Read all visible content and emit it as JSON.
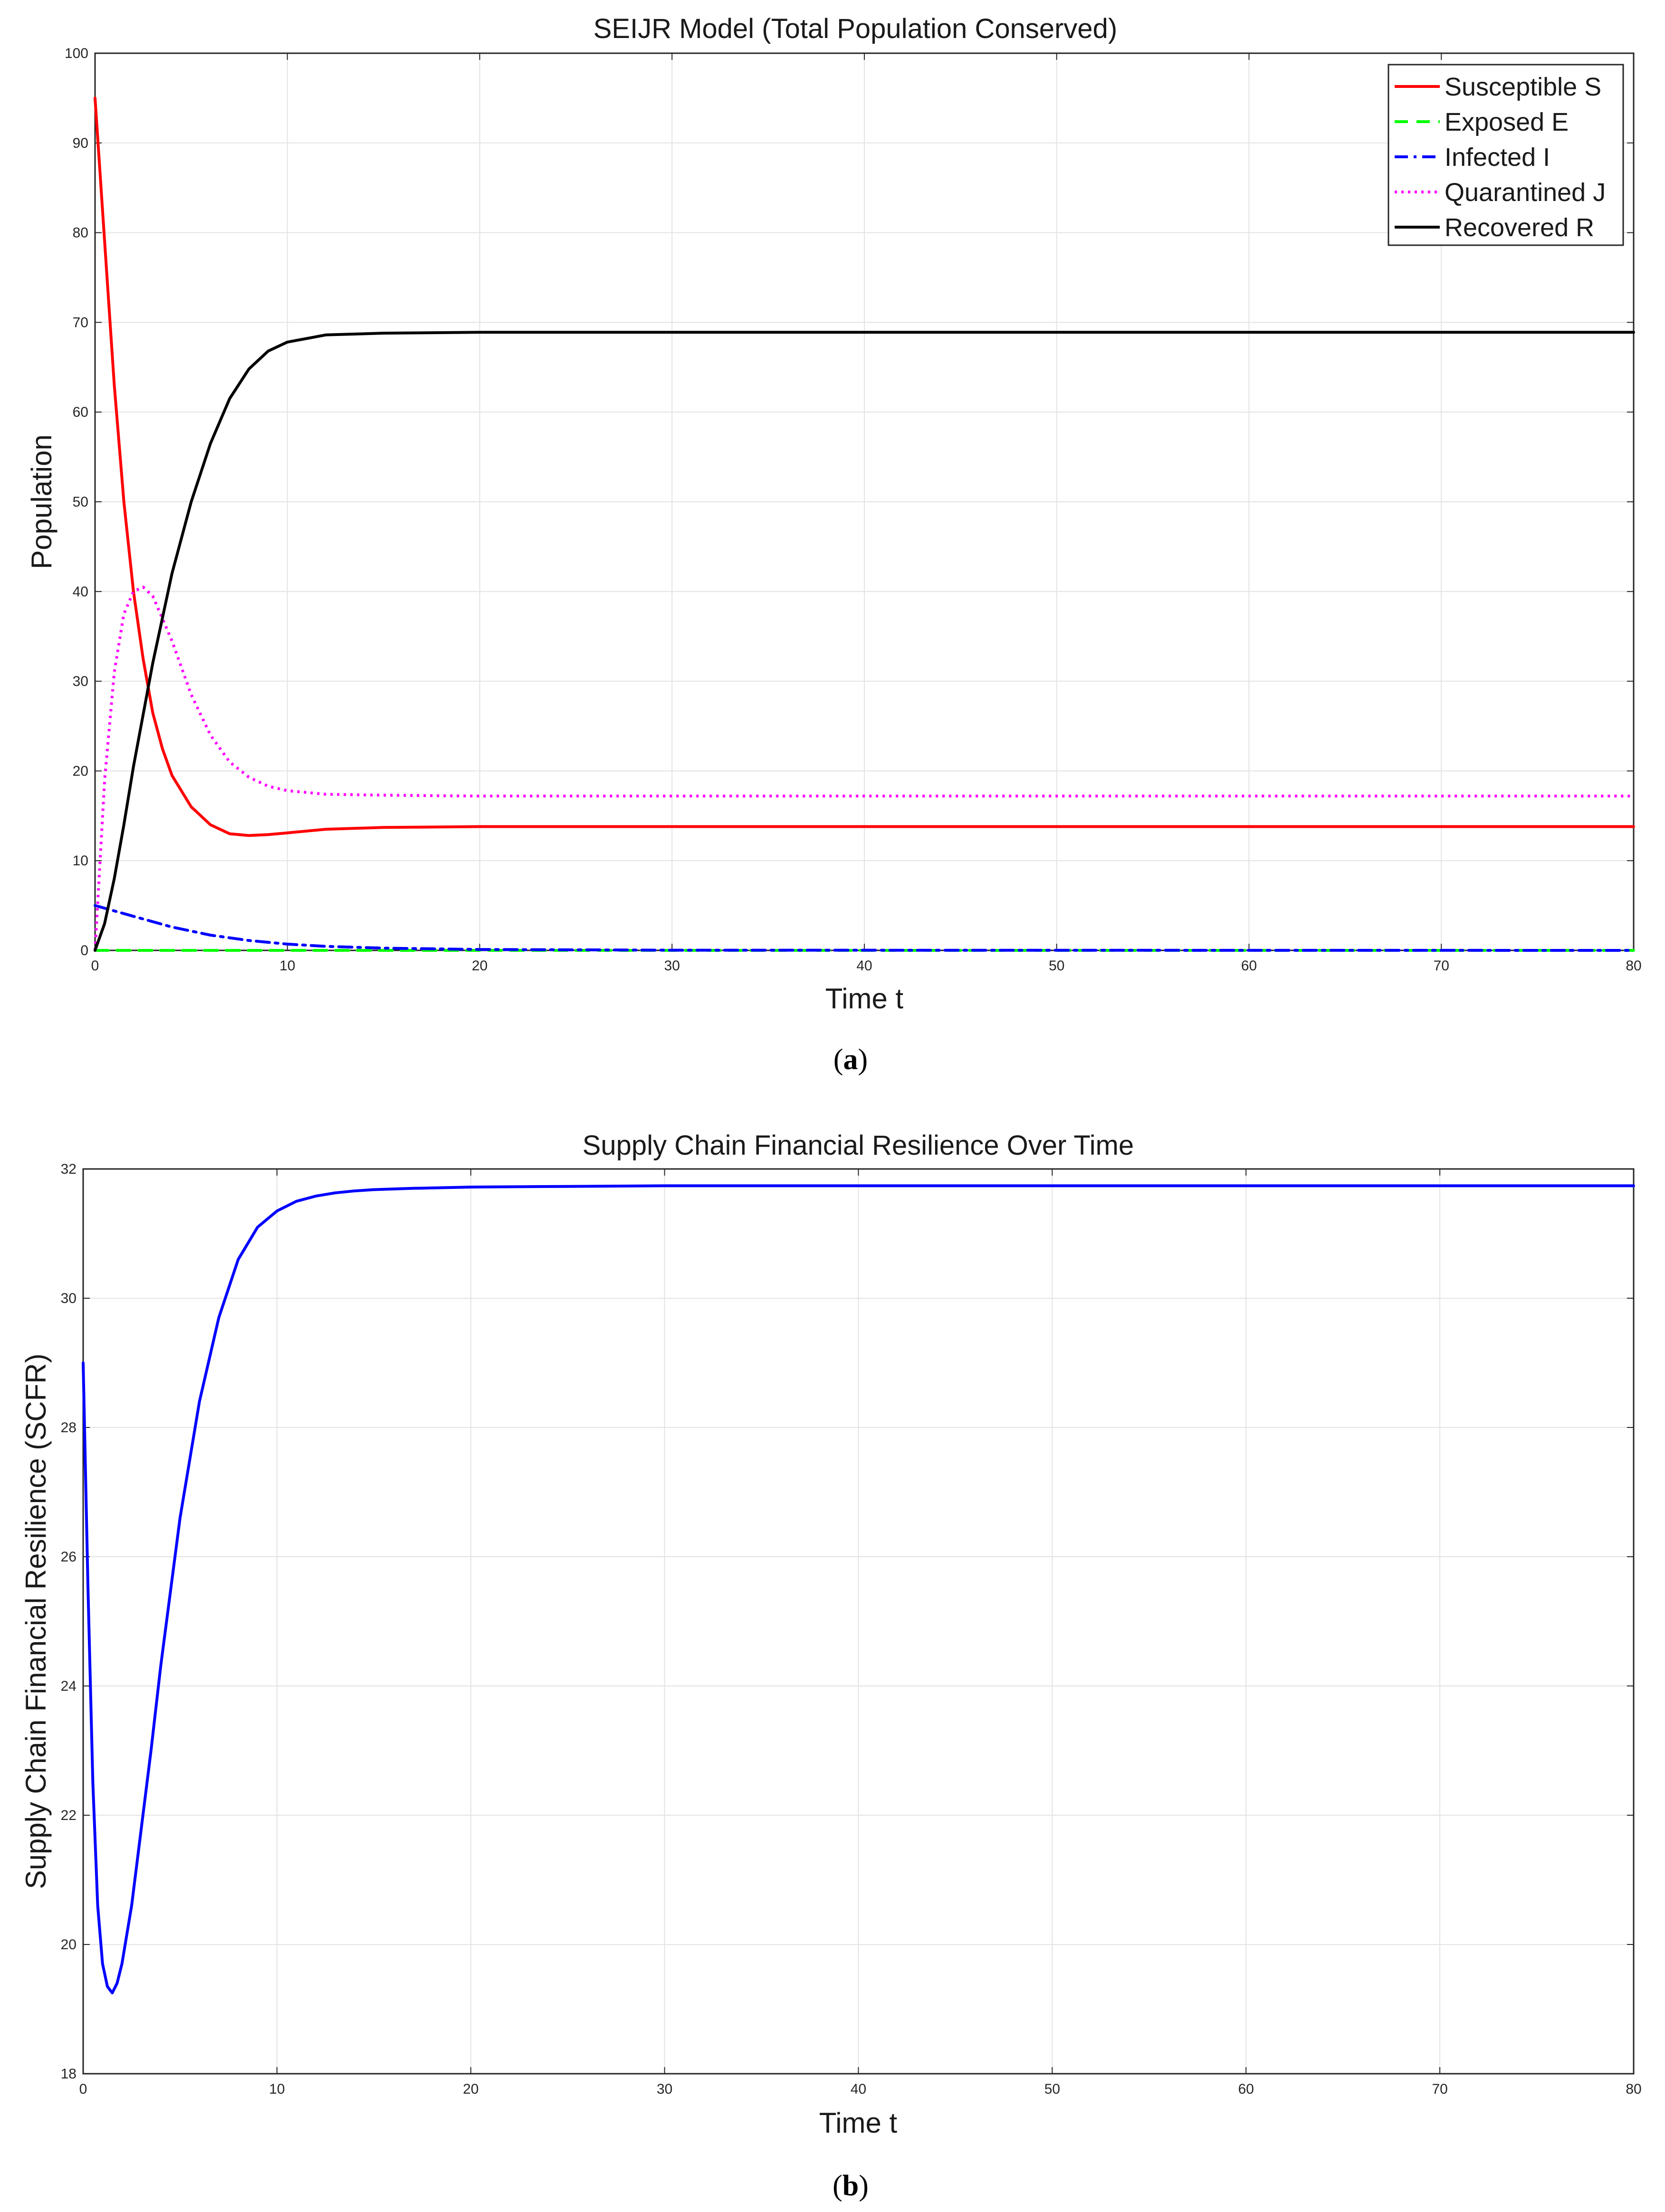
{
  "chart_data": [
    {
      "type": "line",
      "title": "SEIJR Model (Total Population Conserved)",
      "xlabel": "Time t",
      "ylabel": "Population",
      "xlim": [
        0,
        80
      ],
      "ylim": [
        0,
        100
      ],
      "xticks": [
        0,
        10,
        20,
        30,
        40,
        50,
        60,
        70,
        80
      ],
      "yticks": [
        0,
        10,
        20,
        30,
        40,
        50,
        60,
        70,
        80,
        90,
        100
      ],
      "grid": true,
      "legend_position": "top-right",
      "caption": {
        "open": "(",
        "letter": "a",
        "close": ")"
      },
      "series": [
        {
          "name": "Susceptible S",
          "color": "#ff0000",
          "style": "solid",
          "x": [
            0,
            0.5,
            1,
            1.5,
            2,
            2.5,
            3,
            3.5,
            4,
            5,
            6,
            7,
            8,
            9,
            10,
            12,
            15,
            20,
            30,
            80
          ],
          "y": [
            95,
            79,
            63,
            50,
            40,
            32.5,
            26.5,
            22.5,
            19.5,
            16,
            14,
            13,
            12.8,
            12.9,
            13.1,
            13.5,
            13.7,
            13.8,
            13.8,
            13.8
          ]
        },
        {
          "name": "Exposed E",
          "color": "#00ff00",
          "style": "dashed",
          "x": [
            0,
            80
          ],
          "y": [
            0,
            0
          ]
        },
        {
          "name": "Infected I",
          "color": "#0000ff",
          "style": "dashdot",
          "x": [
            0,
            2,
            4,
            6,
            8,
            10,
            12,
            15,
            20,
            30,
            80
          ],
          "y": [
            5,
            3.8,
            2.6,
            1.7,
            1.1,
            0.7,
            0.45,
            0.25,
            0.1,
            0.02,
            0
          ]
        },
        {
          "name": "Quarantined J",
          "color": "#ff00ff",
          "style": "dotted",
          "x": [
            0,
            0.5,
            1,
            1.5,
            2,
            2.5,
            3,
            4,
            5,
            6,
            7,
            8,
            9,
            10,
            12,
            15,
            20,
            80
          ],
          "y": [
            0,
            19,
            31,
            37.5,
            40,
            40.5,
            39.5,
            34.5,
            28.5,
            24,
            21,
            19.3,
            18.3,
            17.8,
            17.4,
            17.3,
            17.2,
            17.2
          ]
        },
        {
          "name": "Recovered R",
          "color": "#000000",
          "style": "solid",
          "x": [
            0,
            0.5,
            1,
            1.5,
            2,
            3,
            4,
            5,
            6,
            7,
            8,
            9,
            10,
            12,
            15,
            20,
            30,
            80
          ],
          "y": [
            0,
            3,
            8,
            14,
            20.5,
            32,
            42,
            50,
            56.5,
            61.5,
            64.8,
            66.8,
            67.8,
            68.6,
            68.8,
            68.9,
            68.9,
            68.9
          ]
        }
      ]
    },
    {
      "type": "line",
      "title": "Supply Chain Financial Resilience Over Time",
      "xlabel": "Time t",
      "ylabel": "Supply Chain Financial Resilience (SCFR)",
      "xlim": [
        0,
        80
      ],
      "ylim": [
        18,
        32
      ],
      "xticks": [
        0,
        10,
        20,
        30,
        40,
        50,
        60,
        70,
        80
      ],
      "yticks": [
        18,
        20,
        22,
        24,
        26,
        28,
        30,
        32
      ],
      "grid": true,
      "caption": {
        "open": "(",
        "letter": "b",
        "close": ")"
      },
      "series": [
        {
          "name": "",
          "color": "#0000ff",
          "style": "solid",
          "x": [
            0,
            0.25,
            0.5,
            0.75,
            1,
            1.25,
            1.5,
            1.75,
            2,
            2.5,
            3,
            3.5,
            4,
            5,
            6,
            7,
            8,
            9,
            10,
            11,
            12,
            13,
            14,
            15,
            17,
            20,
            25,
            30,
            40,
            80
          ],
          "y": [
            29,
            25.5,
            22.5,
            20.6,
            19.7,
            19.35,
            19.25,
            19.4,
            19.7,
            20.6,
            21.8,
            23,
            24.3,
            26.6,
            28.4,
            29.7,
            30.6,
            31.1,
            31.35,
            31.5,
            31.58,
            31.63,
            31.66,
            31.68,
            31.7,
            31.72,
            31.73,
            31.74,
            31.74,
            31.74
          ]
        }
      ]
    }
  ]
}
